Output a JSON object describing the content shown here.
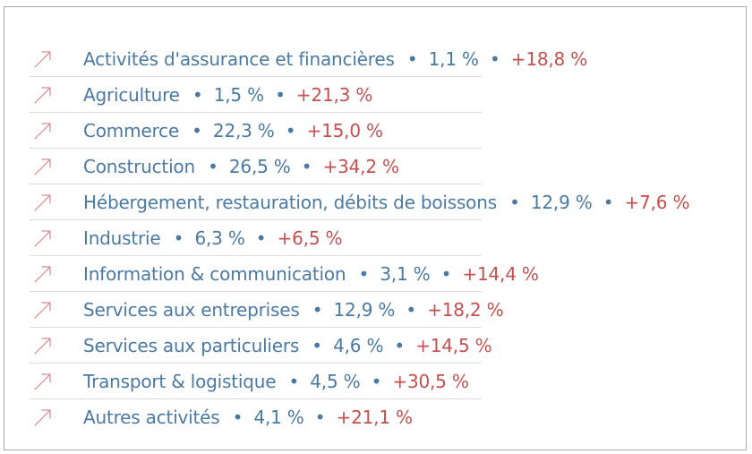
{
  "separator": "•",
  "colors": {
    "label": "#4a7aa3",
    "growth": "#c4504f",
    "arrow": "#d98a8a",
    "rule": "#dcdcdc",
    "frame": "#a9a9a9"
  },
  "icon": "arrow-up-right-icon",
  "rows": [
    {
      "label": "Activités d'assurance et financières",
      "share": "1,1 %",
      "growth": "+18,8 %"
    },
    {
      "label": "Agriculture",
      "share": "1,5 %",
      "growth": "+21,3 %"
    },
    {
      "label": "Commerce",
      "share": "22,3 %",
      "growth": "+15,0 %"
    },
    {
      "label": "Construction",
      "share": "26,5 %",
      "growth": "+34,2 %"
    },
    {
      "label": "Hébergement, restauration, débits de boissons",
      "share": "12,9 %",
      "growth": "+7,6 %"
    },
    {
      "label": "Industrie",
      "share": "6,3 %",
      "growth": "+6,5 %"
    },
    {
      "label": "Information & communication",
      "share": "3,1 %",
      "growth": "+14,4 %"
    },
    {
      "label": "Services aux entreprises",
      "share": "12,9 %",
      "growth": "+18,2 %"
    },
    {
      "label": "Services aux particuliers",
      "share": "4,6 %",
      "growth": "+14,5 %"
    },
    {
      "label": "Transport & logistique",
      "share": "4,5 %",
      "growth": "+30,5 %"
    },
    {
      "label": "Autres activités",
      "share": "4,1 %",
      "growth": "+21,1 %"
    }
  ]
}
